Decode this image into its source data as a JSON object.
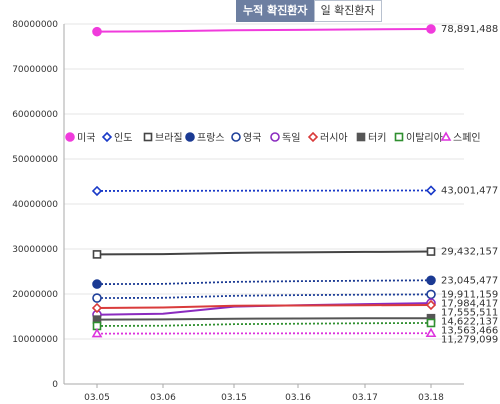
{
  "tabs": {
    "cumulative": "누적 확진환자",
    "daily": "일 확진환자"
  },
  "chart_data": {
    "type": "line",
    "x": [
      "03.05",
      "03.06",
      "03.15",
      "03.16",
      "03.17",
      "03.18"
    ],
    "ylim": [
      0,
      80000000
    ],
    "yticks": [
      0,
      10000000,
      20000000,
      30000000,
      40000000,
      50000000,
      60000000,
      70000000,
      80000000
    ],
    "ytick_labels": [
      "0",
      "10000000",
      "20000000",
      "30000000",
      "40000000",
      "50000000",
      "60000000",
      "70000000",
      "80000000"
    ],
    "grid": true,
    "legend_position": "middle",
    "series": [
      {
        "name": "미국",
        "color": "#f03bdc",
        "style": "solid",
        "marker": "circle-filled",
        "values": [
          78300000,
          78400000,
          78600000,
          78700000,
          78800000,
          78891488
        ],
        "end_label": "78,891,488"
      },
      {
        "name": "인도",
        "color": "#1a3ac8",
        "style": "dotted",
        "marker": "diamond-open",
        "values": [
          42900000,
          42920000,
          42950000,
          42970000,
          42990000,
          43001477
        ],
        "end_label": "43,001,477"
      },
      {
        "name": "브라질",
        "color": "#444444",
        "style": "solid",
        "marker": "square-open",
        "values": [
          28800000,
          28850000,
          29150000,
          29250000,
          29350000,
          29432157
        ],
        "end_label": "29,432,157"
      },
      {
        "name": "프랑스",
        "color": "#1b3a93",
        "style": "dotted",
        "marker": "circle-filled",
        "values": [
          22200000,
          22250000,
          22700000,
          22850000,
          22950000,
          23045477
        ],
        "end_label": "23,045,477"
      },
      {
        "name": "영국",
        "color": "#1e3f99",
        "style": "dotted",
        "marker": "circle-open",
        "values": [
          19100000,
          19150000,
          19600000,
          19750000,
          19850000,
          19911159
        ],
        "end_label": "19,911,159"
      },
      {
        "name": "독일",
        "color": "#8a2bbf",
        "style": "solid",
        "marker": "circle-open",
        "values": [
          15400000,
          15600000,
          17200000,
          17500000,
          17750000,
          17980000
        ],
        "end_label": "17,984,417"
      },
      {
        "name": "러시아",
        "color": "#d93b3b",
        "style": "solid",
        "marker": "diamond-open",
        "values": [
          16900000,
          17000000,
          17400000,
          17450000,
          17500000,
          17555511
        ],
        "end_label": "17,555,511"
      },
      {
        "name": "터키",
        "color": "#555555",
        "style": "solid",
        "marker": "square-filled",
        "values": [
          14300000,
          14350000,
          14500000,
          14550000,
          14600000,
          14622137
        ],
        "end_label": "14,622,137"
      },
      {
        "name": "이탈리아",
        "color": "#2f8f2f",
        "style": "dotted",
        "marker": "square-open",
        "values": [
          12900000,
          12950000,
          13300000,
          13400000,
          13500000,
          13563466
        ],
        "end_label": "13,563,466"
      },
      {
        "name": "스페인",
        "color": "#dd33dd",
        "style": "dotted",
        "marker": "triangle-open",
        "values": [
          11200000,
          11210000,
          11250000,
          11260000,
          11270000,
          11279099
        ],
        "end_label": "11,279,099"
      }
    ]
  }
}
